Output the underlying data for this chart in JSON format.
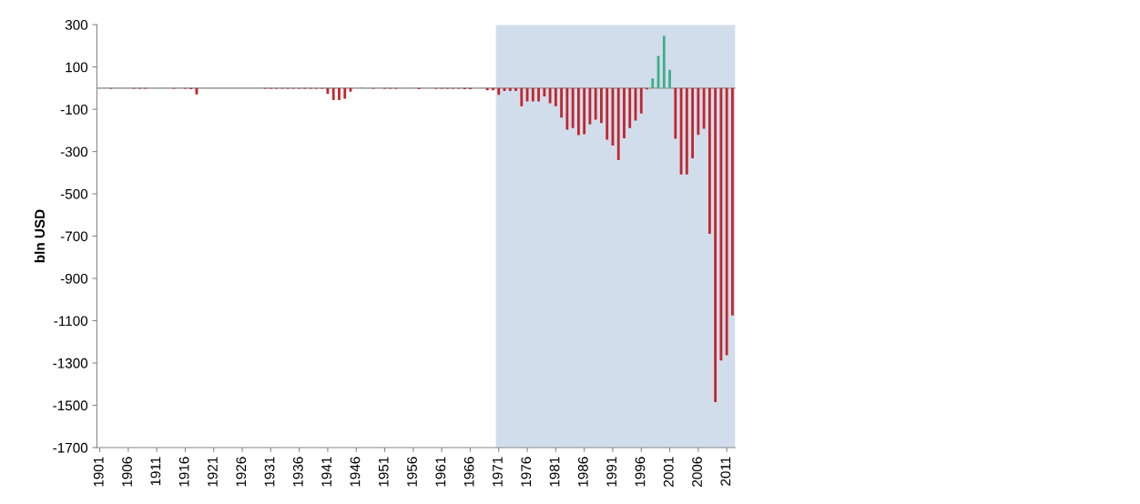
{
  "chart_data": {
    "type": "bar",
    "ylabel": "bln USD",
    "x": [
      1901,
      1902,
      1903,
      1904,
      1905,
      1906,
      1907,
      1908,
      1909,
      1910,
      1911,
      1912,
      1913,
      1914,
      1915,
      1916,
      1917,
      1918,
      1919,
      1920,
      1921,
      1922,
      1923,
      1924,
      1925,
      1926,
      1927,
      1928,
      1929,
      1930,
      1931,
      1932,
      1933,
      1934,
      1935,
      1936,
      1937,
      1938,
      1939,
      1940,
      1941,
      1942,
      1943,
      1944,
      1945,
      1946,
      1947,
      1948,
      1949,
      1950,
      1951,
      1952,
      1953,
      1954,
      1955,
      1956,
      1957,
      1958,
      1959,
      1960,
      1961,
      1962,
      1963,
      1964,
      1965,
      1966,
      1967,
      1968,
      1969,
      1970,
      1971,
      1972,
      1973,
      1974,
      1975,
      1976,
      1977,
      1978,
      1979,
      1980,
      1981,
      1982,
      1983,
      1984,
      1985,
      1986,
      1987,
      1988,
      1989,
      1990,
      1991,
      1992,
      1993,
      1994,
      1995,
      1996,
      1997,
      1998,
      1999,
      2000,
      2001,
      2002,
      2003,
      2004,
      2005,
      2006,
      2007,
      2008,
      2009,
      2010,
      2011,
      2012
    ],
    "values": [
      0,
      0,
      -3,
      0,
      0,
      0,
      -3,
      -3,
      -3,
      0,
      0,
      0,
      0,
      -3,
      0,
      -3,
      -5,
      -30,
      0,
      0,
      0,
      0,
      0,
      0,
      0,
      0,
      0,
      0,
      0,
      -3,
      -3,
      -3,
      -3,
      -3,
      -3,
      -3,
      -3,
      -3,
      -3,
      -3,
      -28,
      -57,
      -57,
      -50,
      -17,
      0,
      4,
      0,
      -3,
      0,
      -3,
      -3,
      -3,
      0,
      0,
      0,
      -5,
      0,
      0,
      -3,
      -3,
      -3,
      -3,
      -3,
      -5,
      -5,
      0,
      0,
      -10,
      -10,
      -32,
      -14,
      -14,
      -14,
      -86,
      -63,
      -63,
      -63,
      -39,
      -72,
      -86,
      -139,
      -196,
      -189,
      -222,
      -218,
      -172,
      -149,
      -165,
      -244,
      -272,
      -340,
      -237,
      -189,
      -153,
      -120,
      -6,
      47,
      152,
      248,
      87,
      -239,
      -408,
      -408,
      -332,
      -221,
      -192,
      -689,
      -1485,
      -1288,
      -1264,
      -1075
    ],
    "colors": [
      "#c0272d",
      "#c0272d",
      "#c0272d",
      "#c0272d",
      "#c0272d",
      "#c0272d",
      "#c0272d",
      "#c0272d",
      "#c0272d",
      "#c0272d",
      "#c0272d",
      "#c0272d",
      "#c0272d",
      "#c0272d",
      "#c0272d",
      "#c0272d",
      "#c0272d",
      "#c0272d",
      "#c0272d",
      "#c0272d",
      "#c0272d",
      "#c0272d",
      "#c0272d",
      "#c0272d",
      "#c0272d",
      "#c0272d",
      "#c0272d",
      "#c0272d",
      "#c0272d",
      "#c0272d",
      "#c0272d",
      "#c0272d",
      "#c0272d",
      "#c0272d",
      "#c0272d",
      "#c0272d",
      "#c0272d",
      "#c0272d",
      "#c0272d",
      "#c0272d",
      "#c0272d",
      "#c0272d",
      "#c0272d",
      "#c0272d",
      "#c0272d",
      "#c0272d",
      "#3fae8a",
      "#c0272d",
      "#c0272d",
      "#c0272d",
      "#c0272d",
      "#c0272d",
      "#c0272d",
      "#c0272d",
      "#c0272d",
      "#c0272d",
      "#c0272d",
      "#c0272d",
      "#c0272d",
      "#c0272d",
      "#c0272d",
      "#c0272d",
      "#c0272d",
      "#c0272d",
      "#c0272d",
      "#c0272d",
      "#c0272d",
      "#c0272d",
      "#c0272d",
      "#c0272d",
      "#c0272d",
      "#c0272d",
      "#c0272d",
      "#c0272d",
      "#c0272d",
      "#c0272d",
      "#c0272d",
      "#c0272d",
      "#c0272d",
      "#c0272d",
      "#c0272d",
      "#c0272d",
      "#c0272d",
      "#c0272d",
      "#c0272d",
      "#c0272d",
      "#c0272d",
      "#c0272d",
      "#c0272d",
      "#c0272d",
      "#c0272d",
      "#c0272d",
      "#c0272d",
      "#c0272d",
      "#c0272d",
      "#c0272d",
      "#c0272d",
      "#3fae8a",
      "#3fae8a",
      "#3fae8a",
      "#3fae8a",
      "#c0272d",
      "#c0272d",
      "#c0272d",
      "#c0272d",
      "#c0272d",
      "#c0272d",
      "#c0272d",
      "#c0272d",
      "#c0272d",
      "#c0272d",
      "#c0272d"
    ],
    "xlim": [
      1900.5,
      2012.5
    ],
    "xticks": [
      1901,
      1906,
      1911,
      1916,
      1921,
      1926,
      1931,
      1936,
      1941,
      1946,
      1951,
      1956,
      1961,
      1966,
      1971,
      1976,
      1981,
      1986,
      1991,
      1996,
      2001,
      2006,
      2011
    ],
    "ylim": [
      -1700,
      300
    ],
    "yticks": [
      300,
      100,
      -100,
      -300,
      -500,
      -700,
      -900,
      -1100,
      -1300,
      -1500,
      -1700
    ],
    "bands": [
      {
        "axis": "x",
        "from": 1970.5,
        "to": 2012.5,
        "color": "#d2ddec"
      }
    ],
    "ref_lines": [
      {
        "axis": "y",
        "value": 0,
        "color": "#a6a6a6"
      }
    ],
    "grid": false,
    "legend": false
  }
}
